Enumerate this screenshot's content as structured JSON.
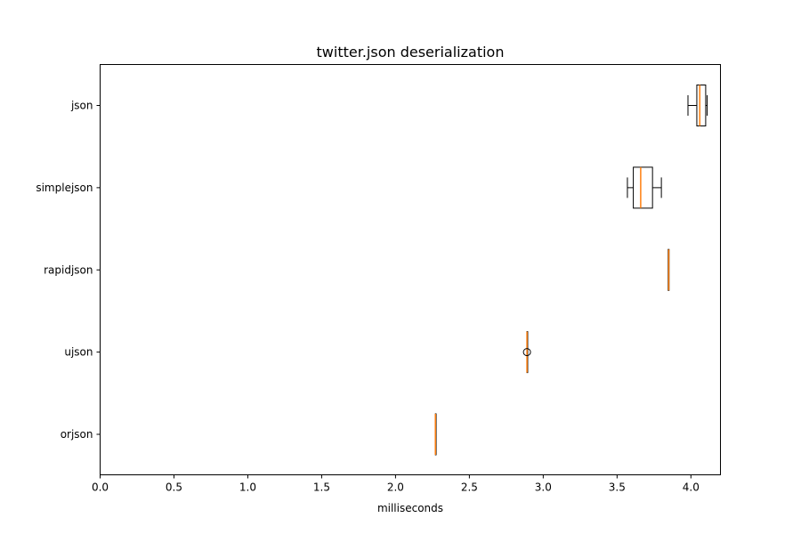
{
  "chart_data": {
    "type": "boxplot",
    "orientation": "horizontal",
    "title": "twitter.json deserialization",
    "xlabel": "milliseconds",
    "ylabel": "",
    "xlim": [
      0.0,
      4.2
    ],
    "xticks": [
      0.0,
      0.5,
      1.0,
      1.5,
      2.0,
      2.5,
      3.0,
      3.5,
      4.0
    ],
    "xtick_labels": [
      "0.0",
      "0.5",
      "1.0",
      "1.5",
      "2.0",
      "2.5",
      "3.0",
      "3.5",
      "4.0"
    ],
    "categories": [
      "orjson",
      "ujson",
      "rapidjson",
      "simplejson",
      "json"
    ],
    "boxes": [
      {
        "label": "orjson",
        "whisker_low": 2.27,
        "q1": 2.27,
        "median": 2.27,
        "q3": 2.272,
        "whisker_high": 2.272,
        "outliers": []
      },
      {
        "label": "ujson",
        "whisker_low": 2.89,
        "q1": 2.89,
        "median": 2.89,
        "q3": 2.892,
        "whisker_high": 2.892,
        "outliers": [
          2.89
        ]
      },
      {
        "label": "rapidjson",
        "whisker_low": 3.846,
        "q1": 3.846,
        "median": 3.85,
        "q3": 3.852,
        "whisker_high": 3.852,
        "outliers": []
      },
      {
        "label": "simplejson",
        "whisker_low": 3.57,
        "q1": 3.61,
        "median": 3.66,
        "q3": 3.74,
        "whisker_high": 3.8,
        "outliers": []
      },
      {
        "label": "json",
        "whisker_low": 3.98,
        "q1": 4.04,
        "median": 4.06,
        "q3": 4.1,
        "whisker_high": 4.11,
        "outliers": []
      }
    ],
    "grid": false,
    "colors": {
      "box": "#000000",
      "median": "#ff7f0e",
      "axis": "#000000",
      "background": "#ffffff"
    }
  }
}
